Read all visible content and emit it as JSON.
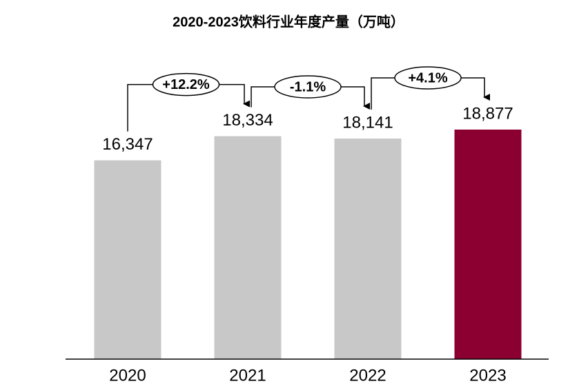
{
  "chart_data": {
    "type": "bar",
    "title": "2020-2023饮料行业年度产量（万吨）",
    "categories": [
      "2020",
      "2021",
      "2022",
      "2023"
    ],
    "values": [
      16347,
      18334,
      18141,
      18877
    ],
    "value_labels": [
      "16,347",
      "18,334",
      "18,141",
      "18,877"
    ],
    "colors": [
      "#c8c8c8",
      "#c8c8c8",
      "#c8c8c8",
      "#8b0030"
    ],
    "annotations": [
      "+12.2%",
      "-1.1%",
      "+4.1%"
    ]
  }
}
